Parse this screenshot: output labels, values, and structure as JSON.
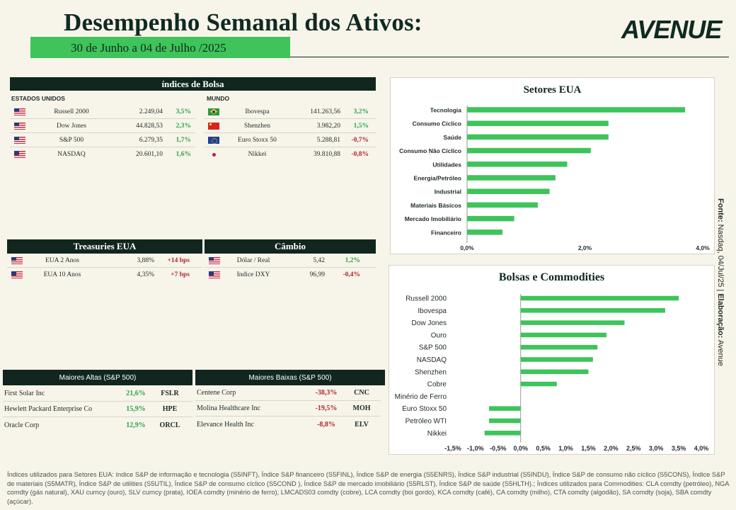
{
  "header": {
    "title": "Desempenho Semanal dos Ativos:",
    "date_range": "30 de Junho a 04 de Julho /2025",
    "logo": "AVENUE"
  },
  "indices": {
    "title": "índices de Bolsa",
    "us_label": "ESTADOS UNIDOS",
    "world_label": "MUNDO",
    "us": [
      {
        "flag": "us-flag-icon",
        "name": "Russell 2000",
        "value": "2.249,04",
        "change": "3,5%"
      },
      {
        "flag": "us-flag-icon",
        "name": "Dow Jones",
        "value": "44.828,53",
        "change": "2,3%"
      },
      {
        "flag": "us-flag-icon",
        "name": "S&P 500",
        "value": "6.279,35",
        "change": "1,7%"
      },
      {
        "flag": "us-flag-icon",
        "name": "NASDAQ",
        "value": "20.601,10",
        "change": "1,6%"
      }
    ],
    "world": [
      {
        "flag": "brazil-flag-icon",
        "name": "Ibovespa",
        "value": "141.263,56",
        "change": "3,2%"
      },
      {
        "flag": "china-flag-icon",
        "name": "Shenzhen",
        "value": "3.982,20",
        "change": "1,5%"
      },
      {
        "flag": "eu-flag-icon",
        "name": "Euro Stoxx 50",
        "value": "5.288,81",
        "change": "-0,7%"
      },
      {
        "flag": "japan-flag-icon",
        "name": "Nikkei",
        "value": "39.810,88",
        "change": "-0,8%"
      }
    ]
  },
  "treasuries": {
    "title": "Treasuries EUA",
    "rows": [
      {
        "name": "EUA 2 Anos",
        "value": "3,88%",
        "change": "+14 bps"
      },
      {
        "name": "EUA 10 Anos",
        "value": "4,35%",
        "change": "+7 bps"
      }
    ]
  },
  "cambio": {
    "title": "Câmbio",
    "rows": [
      {
        "name": "Dólar / Real",
        "value": "5,42",
        "change": "1,2%"
      },
      {
        "name": "Índice DXY",
        "value": "96,99",
        "change": "-0,4%"
      }
    ]
  },
  "altas": {
    "title": "Maiores Altas (S&P 500)",
    "rows": [
      {
        "name": "First Solar Inc",
        "change": "21,6%",
        "ticker": "FSLR"
      },
      {
        "name": "Hewlett Packard Enterprise Co",
        "change": "15,9%",
        "ticker": "HPE"
      },
      {
        "name": "Oracle Corp",
        "change": "12,9%",
        "ticker": "ORCL"
      }
    ]
  },
  "baixas": {
    "title": "Maiores Baixas (S&P 500)",
    "rows": [
      {
        "name": "Centene Corp",
        "change": "-38,3%",
        "ticker": "CNC"
      },
      {
        "name": "Molina Healthcare Inc",
        "change": "-19,5%",
        "ticker": "MOH"
      },
      {
        "name": "Elevance Health Inc",
        "change": "-8,8%",
        "ticker": "ELV"
      }
    ]
  },
  "side_note": {
    "fonte_label": "Fonte:",
    "fonte_text": "Nasdaq, 04/Jul/25 |",
    "elab_label": "Elaboração:",
    "elab_text": "Avenue"
  },
  "footer": {
    "text": "Índices utilizados para Setores EUA: índice S&P de informação e tecnologia (S5INFT), Índice S&P financeiro (S5FINL), Índice S&P de energia (S5ENRS), Índice S&P industrial (S5INDU), Índice S&P de consumo não cíclico (S5CONS), Índice S&P de materiais (S5MATR), Índice S&P de utilities (S5UTIL), Índice S&P de consumo cíclico (S5COND ), Índice S&P de mercado imobiliário (S5RLST), Índice S&P de saúde (S5HLTH).; Índices utilizados para Commodities: CLA comdty (petróleo), NGA comdty (gás natural), XAU curncy (ouro), SLV curncy (prata), IOEA comdty (minério de ferro), LMCADS03 comdty (cobre), LCA comdty (boi gordo), KCA comdty (café), CA comdty (milho), CTA comdty (algodão), SA comdty (soja), SBA comdty (açúcar)."
  },
  "colors": {
    "accent": "#3ec45a",
    "dark": "#10261f",
    "positive": "#2aa546",
    "negative": "#b3262d"
  },
  "chart_data": [
    {
      "type": "bar",
      "orientation": "horizontal",
      "title": "Setores EUA",
      "categories": [
        "Tecnologia",
        "Consumo Cíclico",
        "Saúde",
        "Consumo Não Cíclico",
        "Utilidades",
        "Energia/Petróleo",
        "Industrial",
        "Materiais Básicos",
        "Mercado Imobiliário",
        "Financeiro"
      ],
      "values": [
        3.7,
        2.4,
        2.4,
        2.1,
        1.7,
        1.5,
        1.4,
        1.2,
        0.8,
        0.6
      ],
      "xlim": [
        0,
        4
      ],
      "ticks": [
        "0,0%",
        "2,0%",
        "4,0%"
      ],
      "tick_values": [
        0,
        2,
        4
      ]
    },
    {
      "type": "bar",
      "orientation": "horizontal",
      "title": "Bolsas e Commodities",
      "categories": [
        "Russell 2000",
        "Ibovespa",
        "Dow Jones",
        "Ouro",
        "S&P 500",
        "NASDAQ",
        "Shenzhen",
        "Cobre",
        "Minério de Ferro",
        "Euro Stoxx 50",
        "Petróleo WTI",
        "Nikkei"
      ],
      "values": [
        3.5,
        3.2,
        2.3,
        1.9,
        1.7,
        1.6,
        1.5,
        0.8,
        0.0,
        -0.7,
        -0.7,
        -0.8
      ],
      "xlim": [
        -1.5,
        4.0
      ],
      "ticks": [
        "-1,5%",
        "-1,0%",
        "-0,5%",
        "0,0%",
        "0,5%",
        "1,0%",
        "1,5%",
        "2,0%",
        "2,5%",
        "3,0%",
        "3,5%",
        "4,0%"
      ],
      "tick_values": [
        -1.5,
        -1.0,
        -0.5,
        0,
        0.5,
        1.0,
        1.5,
        2.0,
        2.5,
        3.0,
        3.5,
        4.0
      ]
    }
  ]
}
